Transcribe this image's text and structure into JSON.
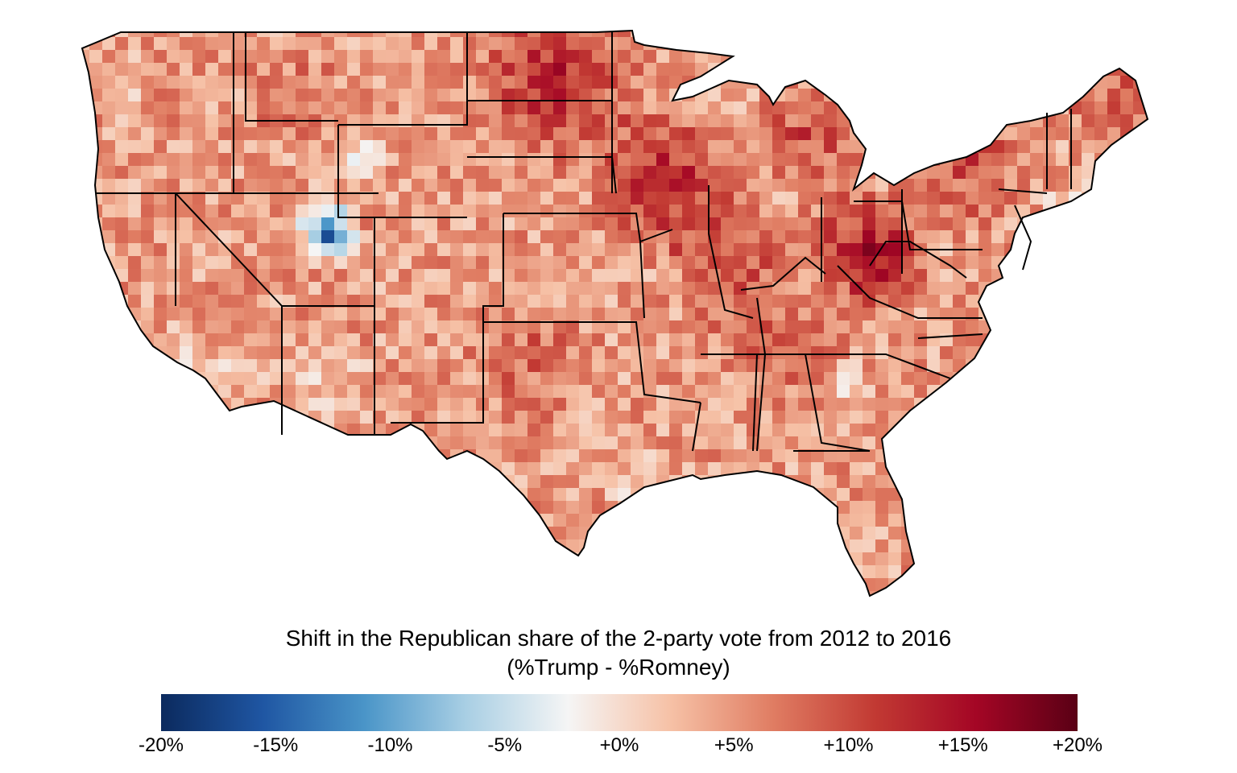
{
  "map": {
    "subject": "Contiguous United States county-level choropleth",
    "color_scale": {
      "min": -20,
      "max": 20,
      "unit": "%",
      "stops": [
        "#0b2a5e",
        "#1f56a3",
        "#4a95c8",
        "#a9cfe4",
        "#f5f5f5",
        "#f6c1a6",
        "#e07d63",
        "#c23a33",
        "#a40625",
        "#5a0015"
      ]
    }
  },
  "legend": {
    "title_line1": "Shift in the Republican share of the 2-party vote from 2012 to 2016",
    "title_line2": "(%Trump - %Romney)",
    "ticks": [
      "-20%",
      "-15%",
      "-10%",
      "-5%",
      "+0%",
      "+5%",
      "+10%",
      "+15%",
      "+20%"
    ]
  }
}
